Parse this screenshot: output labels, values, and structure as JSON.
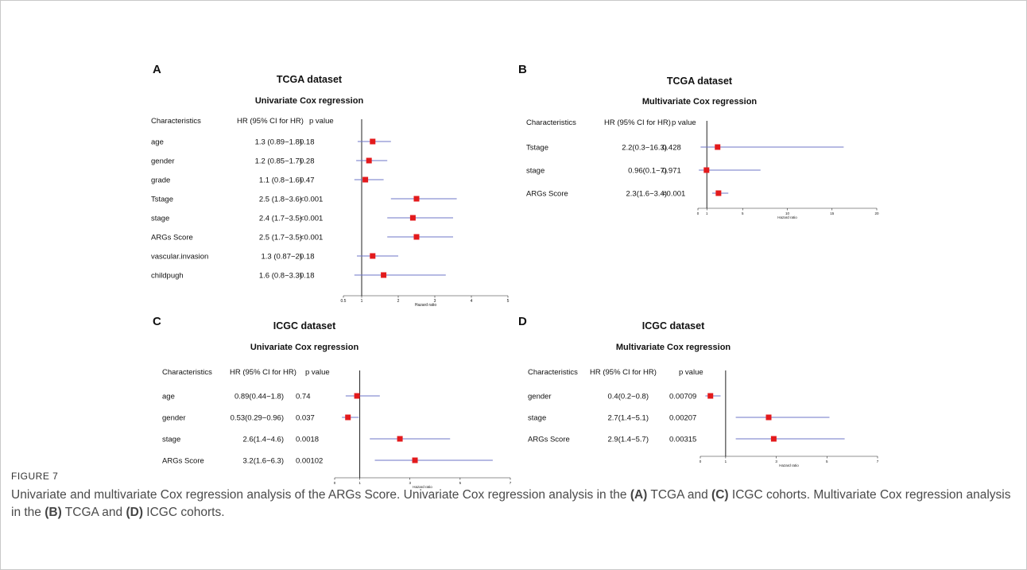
{
  "figure": {
    "label": "FIGURE 7",
    "caption_parts": [
      {
        "t": "Univariate and multivariate Cox regression analysis of the ARGs Score. Univariate Cox regression analysis in the ",
        "b": false
      },
      {
        "t": "(A)",
        "b": true
      },
      {
        "t": " TCGA and ",
        "b": false
      },
      {
        "t": "(C)",
        "b": true
      },
      {
        "t": " ICGC cohorts. Multivariate Cox regression analysis in the ",
        "b": false
      },
      {
        "t": "(B)",
        "b": true
      },
      {
        "t": " TCGA and ",
        "b": false
      },
      {
        "t": "(D)",
        "b": true
      },
      {
        "t": " ICGC cohorts.",
        "b": false
      }
    ]
  },
  "colors": {
    "point": "#e31a1c",
    "ci_line": "#6e74c7",
    "ref_line": "#222222",
    "text": "#111111"
  },
  "chart_data": [
    {
      "panel": "A",
      "type": "forest",
      "title": "TCGA dataset",
      "subtitle": "Univariate Cox regression",
      "headers": [
        "Characteristics",
        "HR (95% CI for HR)",
        "p value"
      ],
      "xlabel": "Hazard ratio",
      "xlim": [
        0.5,
        5
      ],
      "ref": 1,
      "xticks": [
        0.5,
        1,
        2,
        3,
        4,
        5
      ],
      "xtick_labels": [
        "0.5",
        "1",
        "2",
        "3",
        "4",
        "5"
      ],
      "rows": [
        {
          "name": "age",
          "hr_text": "1.3 (0.89−1.8)",
          "p": "0.18",
          "hr": 1.3,
          "lo": 0.89,
          "hi": 1.8
        },
        {
          "name": "gender",
          "hr_text": "1.2 (0.85−1.7)",
          "p": "0.28",
          "hr": 1.2,
          "lo": 0.85,
          "hi": 1.7
        },
        {
          "name": "grade",
          "hr_text": "1.1 (0.8−1.6)",
          "p": "0.47",
          "hr": 1.1,
          "lo": 0.8,
          "hi": 1.6
        },
        {
          "name": "Tstage",
          "hr_text": "2.5 (1.8−3.6)",
          "p": "<0.001",
          "hr": 2.5,
          "lo": 1.8,
          "hi": 3.6
        },
        {
          "name": "stage",
          "hr_text": "2.4 (1.7−3.5)",
          "p": "<0.001",
          "hr": 2.4,
          "lo": 1.7,
          "hi": 3.5
        },
        {
          "name": "ARGs Score",
          "hr_text": "2.5 (1.7−3.5)",
          "p": "<0.001",
          "hr": 2.5,
          "lo": 1.7,
          "hi": 3.5
        },
        {
          "name": "vascular.invasion",
          "hr_text": "1.3 (0.87−2)",
          "p": "0.18",
          "hr": 1.3,
          "lo": 0.87,
          "hi": 2
        },
        {
          "name": "childpugh",
          "hr_text": "1.6 (0.8−3.3)",
          "p": "0.18",
          "hr": 1.6,
          "lo": 0.8,
          "hi": 3.3
        }
      ]
    },
    {
      "panel": "B",
      "type": "forest",
      "title": "TCGA  dataset",
      "subtitle": "Multivariate Cox regression",
      "headers": [
        "Characteristics",
        "HR (95% CI for HR)",
        "p value"
      ],
      "xlabel": "Hazard ratio",
      "xlim": [
        0,
        20
      ],
      "ref": 1,
      "xticks": [
        0,
        1,
        5,
        10,
        15,
        20
      ],
      "xtick_labels": [
        "0",
        "1",
        "5",
        "10",
        "15",
        "20"
      ],
      "rows": [
        {
          "name": "Tstage",
          "hr_text": "2.2(0.3−16.3)",
          "p": "0.428",
          "hr": 2.2,
          "lo": 0.3,
          "hi": 16.3
        },
        {
          "name": "stage",
          "hr_text": "0.96(0.1−7)",
          "p": "0.971",
          "hr": 0.96,
          "lo": 0.1,
          "hi": 7
        },
        {
          "name": "ARGs Score",
          "hr_text": "2.3(1.6−3.4)",
          "p": "<0.001",
          "hr": 2.3,
          "lo": 1.6,
          "hi": 3.4
        }
      ]
    },
    {
      "panel": "C",
      "type": "forest",
      "title": "ICGC dataset",
      "subtitle": "Univariate Cox regression",
      "headers": [
        "Characteristics",
        "HR (95% CI for HR)",
        "p value"
      ],
      "xlabel": "Hazard ratio",
      "xlim": [
        0,
        7
      ],
      "ref": 1,
      "xticks": [
        0,
        1,
        3,
        5,
        7
      ],
      "xtick_labels": [
        "0",
        "1",
        "3",
        "5",
        "7"
      ],
      "rows": [
        {
          "name": "age",
          "hr_text": "0.89(0.44−1.8)",
          "p": "0.74",
          "hr": 0.89,
          "lo": 0.44,
          "hi": 1.8
        },
        {
          "name": "gender",
          "hr_text": "0.53(0.29−0.96)",
          "p": "0.037",
          "hr": 0.53,
          "lo": 0.29,
          "hi": 0.96
        },
        {
          "name": "stage",
          "hr_text": "2.6(1.4−4.6)",
          "p": "0.0018",
          "hr": 2.6,
          "lo": 1.4,
          "hi": 4.6
        },
        {
          "name": "ARGs Score",
          "hr_text": "3.2(1.6−6.3)",
          "p": "0.00102",
          "hr": 3.2,
          "lo": 1.6,
          "hi": 6.3
        }
      ]
    },
    {
      "panel": "D",
      "type": "forest",
      "title": "ICGC dataset",
      "subtitle": "Multivariate Cox regression",
      "headers": [
        "Characteristics",
        "HR (95% CI for HR)",
        "p value"
      ],
      "xlabel": "Hazard ratio",
      "xlim": [
        0,
        7
      ],
      "ref": 1,
      "xticks": [
        0,
        1,
        3,
        5,
        7
      ],
      "xtick_labels": [
        "0",
        "1",
        "3",
        "5",
        "7"
      ],
      "rows": [
        {
          "name": "gender",
          "hr_text": "0.4(0.2−0.8)",
          "p": "0.00709",
          "hr": 0.4,
          "lo": 0.2,
          "hi": 0.8
        },
        {
          "name": "stage",
          "hr_text": "2.7(1.4−5.1)",
          "p": "0.00207",
          "hr": 2.7,
          "lo": 1.4,
          "hi": 5.1
        },
        {
          "name": "ARGs Score",
          "hr_text": "2.9(1.4−5.7)",
          "p": "0.00315",
          "hr": 2.9,
          "lo": 1.4,
          "hi": 5.7
        }
      ]
    }
  ]
}
